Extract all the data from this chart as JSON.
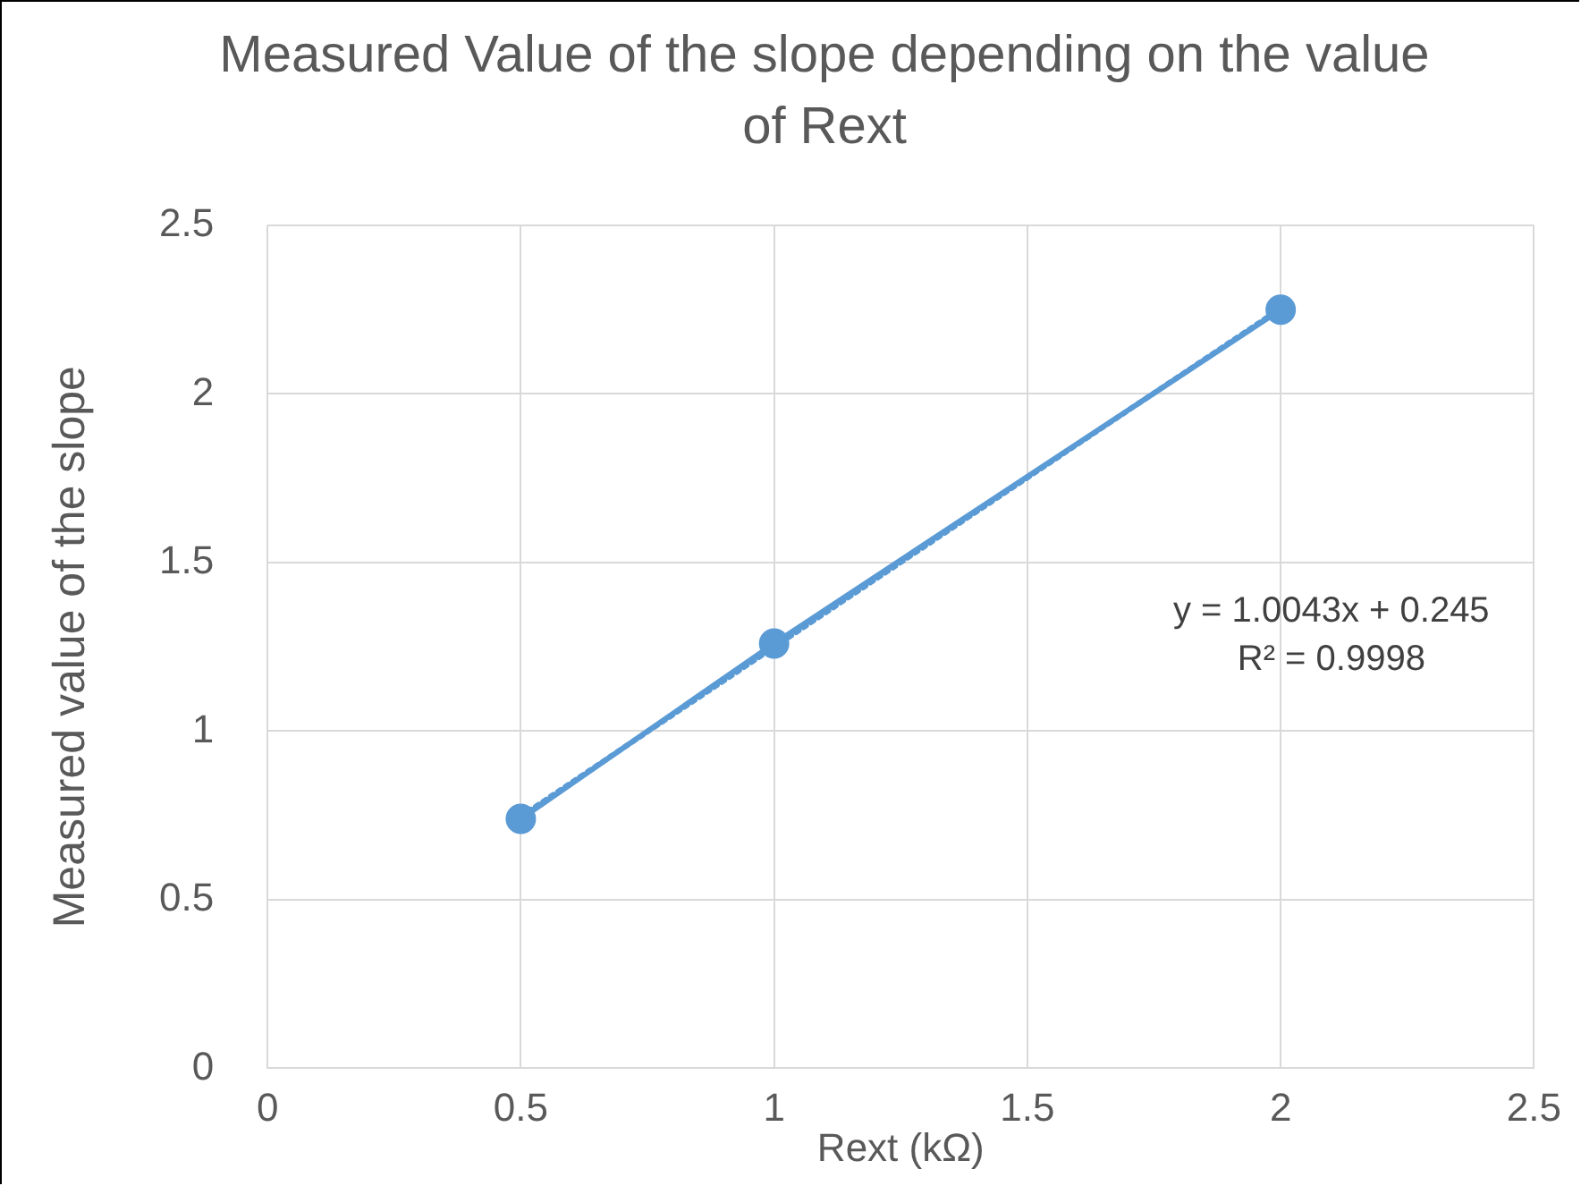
{
  "chart_data": {
    "type": "line",
    "title": "Measured Value of the slope depending on the value of Rext",
    "xlabel": "Rext (kΩ)",
    "ylabel": "Measured value of the slope",
    "x": [
      0.5,
      1,
      2
    ],
    "series": [
      {
        "color": "#5b9bd5",
        "values": [
          0.74,
          1.26,
          2.25
        ],
        "marker": "circle",
        "line_style": "solid"
      },
      {
        "type": "line",
        "color": "#5b9bd5",
        "x": [
          0.5,
          2
        ],
        "values": [
          0.747,
          2.254
        ],
        "marker": "none",
        "line_style": "dotted"
      }
    ],
    "xlim": [
      0,
      2.5
    ],
    "xticks": [
      0,
      0.5,
      1,
      1.5,
      2,
      2.5
    ],
    "ylim": [
      0,
      2.5
    ],
    "yticks": [
      0,
      0.5,
      1,
      1.5,
      2,
      2.5
    ],
    "grid": true,
    "annotations": [
      "y = 1.0043x + 0.245",
      "R² = 0.9998"
    ]
  }
}
